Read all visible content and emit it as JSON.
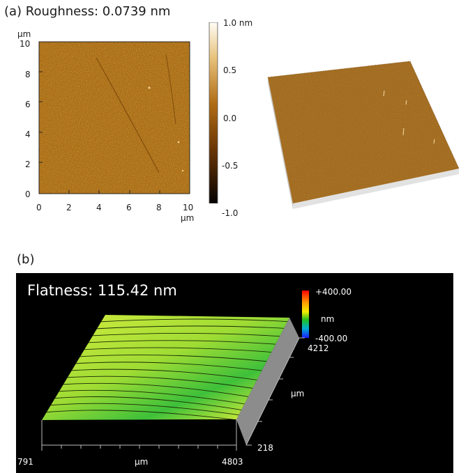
{
  "panel_a": {
    "label": "(a) Roughness: 0.0739 nm",
    "y_unit": "µm",
    "x_unit": "µm",
    "y_ticks": [
      "10",
      "8",
      "6",
      "4",
      "2",
      "0"
    ],
    "x_ticks": [
      "0",
      "2",
      "4",
      "6",
      "8",
      "10"
    ],
    "colorbar_ticks": [
      "1.0 nm",
      "0.5",
      "0.0",
      "-0.5",
      "-1.0"
    ],
    "colors": {
      "afm_mid": "#a4620e",
      "afm_light": "#d39a3c",
      "afm_dark": "#5e3306"
    }
  },
  "panel_b": {
    "label": "(b)",
    "title": "Flatness: 115.42 nm",
    "scale_top": "+400.00",
    "scale_unit": "nm",
    "scale_bottom": "-400.00",
    "right_axis_top": "4212",
    "right_axis_unit": "µm",
    "right_axis_bottom": "218",
    "bottom_axis_left": "791",
    "bottom_axis_unit": "µm",
    "bottom_axis_right": "4803",
    "colors": {
      "surface_light": "#d9f03a",
      "surface_dark": "#2fbd3a",
      "side": "#8c8c8c"
    }
  }
}
